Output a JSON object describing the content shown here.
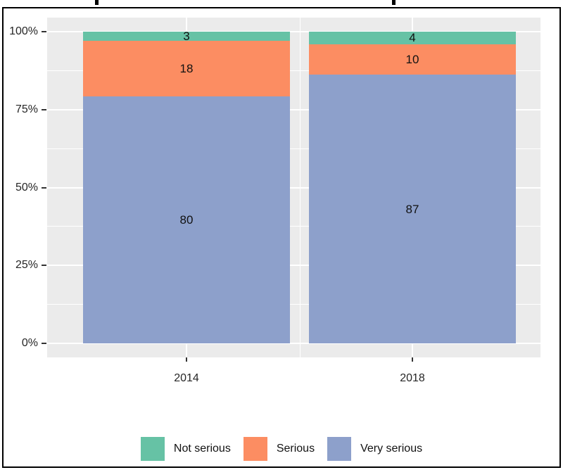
{
  "figure": {
    "background": "#ffffff",
    "frame_border_color": "#000000",
    "panel_background": "#ebebeb",
    "gridline_color": "#ffffff"
  },
  "chart_data": {
    "type": "bar",
    "subtype": "stacked_percent_fill",
    "categories": [
      "2014",
      "2018"
    ],
    "series": [
      {
        "name": "Not serious",
        "color": "#66C2A5",
        "values": [
          3,
          4
        ]
      },
      {
        "name": "Serious",
        "color": "#FC8D62",
        "values": [
          18,
          10
        ]
      },
      {
        "name": "Very serious",
        "color": "#8DA0CB",
        "values": [
          80,
          87
        ]
      }
    ],
    "stack_order_top_to_bottom": [
      "Not serious",
      "Serious",
      "Very serious"
    ],
    "bar_value_labels": {
      "2014": [
        3,
        18,
        80
      ],
      "2018": [
        4,
        10,
        87
      ]
    },
    "y_axis": {
      "ticks": [
        {
          "label": "0%",
          "pct": 0
        },
        {
          "label": "25%",
          "pct": 25
        },
        {
          "label": "50%",
          "pct": 50
        },
        {
          "label": "75%",
          "pct": 75
        },
        {
          "label": "100%",
          "pct": 100
        }
      ],
      "range": [
        0,
        100
      ],
      "minor_gridlines": true
    },
    "x_axis": {
      "ticks": [
        "2014",
        "2018"
      ]
    },
    "legend": {
      "position": "bottom",
      "entries": [
        "Not serious",
        "Serious",
        "Very serious"
      ]
    },
    "title": {
      "visible_text": "",
      "note_cropped": true
    }
  }
}
